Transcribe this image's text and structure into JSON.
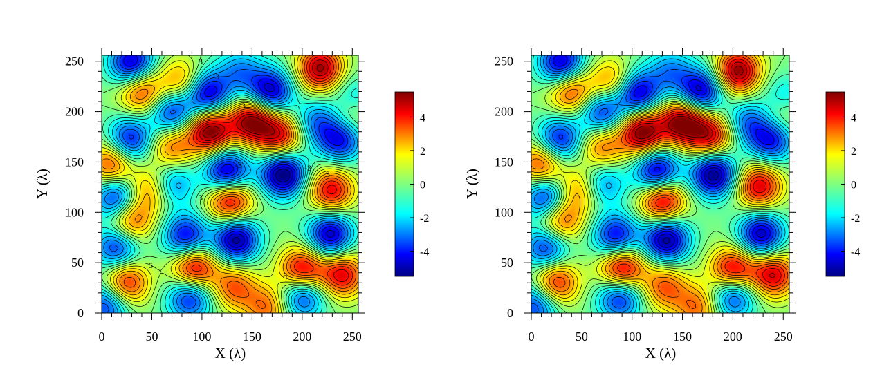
{
  "chart_data": [
    {
      "type": "heatmap",
      "panel": "left",
      "title": "",
      "xlabel": "X (λ)",
      "ylabel": "Y (λ)",
      "xlim": [
        0,
        256
      ],
      "ylim": [
        0,
        256
      ],
      "xticks": [
        0,
        50,
        100,
        150,
        200,
        250
      ],
      "yticks": [
        0,
        50,
        100,
        150,
        200,
        250
      ],
      "colorbar": {
        "range": [
          -5.5,
          5.5
        ],
        "ticks": [
          4,
          2,
          0,
          -2,
          -4
        ]
      },
      "contour_lines": true,
      "contour_labels": [
        "3",
        "3",
        "3",
        "3",
        "3",
        "-3",
        "-3",
        "-3",
        "1",
        "5"
      ],
      "features": [
        {
          "x": 218,
          "y": 243,
          "v": 5.2
        },
        {
          "x": 150,
          "y": 191,
          "v": 5.5
        },
        {
          "x": 108,
          "y": 181,
          "v": 5.8
        },
        {
          "x": 128,
          "y": 112,
          "v": 5.0
        },
        {
          "x": 92,
          "y": 44,
          "v": 5.0
        },
        {
          "x": 200,
          "y": 42,
          "v": 5.0
        },
        {
          "x": 240,
          "y": 38,
          "v": 4.4
        },
        {
          "x": 229,
          "y": 122,
          "v": 4.4
        },
        {
          "x": 178,
          "y": 176,
          "v": 4.2
        },
        {
          "x": 40,
          "y": 220,
          "v": 3.8
        },
        {
          "x": 10,
          "y": 148,
          "v": 3.8
        },
        {
          "x": 28,
          "y": 92,
          "v": 3.8
        },
        {
          "x": 24,
          "y": 30,
          "v": 4.2
        },
        {
          "x": 132,
          "y": 26,
          "v": 3.2
        },
        {
          "x": 70,
          "y": 165,
          "v": 3.0
        },
        {
          "x": 165,
          "y": 6,
          "v": 3.0
        },
        {
          "x": 248,
          "y": 200,
          "v": 3.2
        },
        {
          "x": 48,
          "y": 122,
          "v": 3.0
        },
        {
          "x": 80,
          "y": 229,
          "v": 3.0
        },
        {
          "x": 30,
          "y": 248,
          "v": -5.0
        },
        {
          "x": 105,
          "y": 218,
          "v": -5.0
        },
        {
          "x": 168,
          "y": 220,
          "v": -5.0
        },
        {
          "x": 70,
          "y": 200,
          "v": -4.0
        },
        {
          "x": 28,
          "y": 172,
          "v": -4.2
        },
        {
          "x": 125,
          "y": 140,
          "v": -5.4
        },
        {
          "x": 181,
          "y": 138,
          "v": -5.8
        },
        {
          "x": 15,
          "y": 114,
          "v": -4.4
        },
        {
          "x": 84,
          "y": 76,
          "v": -4.4
        },
        {
          "x": 134,
          "y": 73,
          "v": -5.4
        },
        {
          "x": 228,
          "y": 78,
          "v": -5.0
        },
        {
          "x": 15,
          "y": 65,
          "v": -4.0
        },
        {
          "x": 88,
          "y": 16,
          "v": -4.2
        },
        {
          "x": 200,
          "y": 18,
          "v": -4.2
        },
        {
          "x": 5,
          "y": 8,
          "v": -3.8
        },
        {
          "x": 238,
          "y": 172,
          "v": -4.2
        },
        {
          "x": 70,
          "y": 128,
          "v": -3.0
        },
        {
          "x": 250,
          "y": 210,
          "v": -3.2
        },
        {
          "x": 215,
          "y": 190,
          "v": -2.8
        },
        {
          "x": 138,
          "y": 240,
          "v": -2.5
        }
      ]
    },
    {
      "type": "heatmap",
      "panel": "right",
      "title": "",
      "xlabel": "X (λ)",
      "ylabel": "Y (λ)",
      "xlim": [
        0,
        256
      ],
      "ylim": [
        0,
        256
      ],
      "xticks": [
        0,
        50,
        100,
        150,
        200,
        250
      ],
      "yticks": [
        0,
        50,
        100,
        150,
        200,
        250
      ],
      "colorbar": {
        "range": [
          -5.5,
          5.5
        ],
        "ticks": [
          4,
          2,
          0,
          -2,
          -4
        ]
      },
      "contour_lines": true,
      "contour_labels": [],
      "features": [
        {
          "x": 205,
          "y": 240,
          "v": 5.4
        },
        {
          "x": 150,
          "y": 190,
          "v": 5.6
        },
        {
          "x": 110,
          "y": 180,
          "v": 5.8
        },
        {
          "x": 130,
          "y": 112,
          "v": 5.2
        },
        {
          "x": 90,
          "y": 44,
          "v": 5.2
        },
        {
          "x": 200,
          "y": 42,
          "v": 5.0
        },
        {
          "x": 240,
          "y": 38,
          "v": 4.6
        },
        {
          "x": 226,
          "y": 126,
          "v": 4.6
        },
        {
          "x": 178,
          "y": 176,
          "v": 4.4
        },
        {
          "x": 40,
          "y": 220,
          "v": 3.8
        },
        {
          "x": 10,
          "y": 148,
          "v": 3.8
        },
        {
          "x": 28,
          "y": 92,
          "v": 3.8
        },
        {
          "x": 24,
          "y": 30,
          "v": 4.2
        },
        {
          "x": 132,
          "y": 26,
          "v": 3.2
        },
        {
          "x": 70,
          "y": 165,
          "v": 3.0
        },
        {
          "x": 165,
          "y": 6,
          "v": 3.0
        },
        {
          "x": 248,
          "y": 200,
          "v": 3.2
        },
        {
          "x": 48,
          "y": 122,
          "v": 3.0
        },
        {
          "x": 80,
          "y": 229,
          "v": 3.0
        },
        {
          "x": 30,
          "y": 248,
          "v": -5.0
        },
        {
          "x": 105,
          "y": 218,
          "v": -5.0
        },
        {
          "x": 168,
          "y": 220,
          "v": -5.0
        },
        {
          "x": 70,
          "y": 200,
          "v": -4.0
        },
        {
          "x": 28,
          "y": 172,
          "v": -4.2
        },
        {
          "x": 125,
          "y": 140,
          "v": -5.2
        },
        {
          "x": 181,
          "y": 138,
          "v": -5.6
        },
        {
          "x": 15,
          "y": 114,
          "v": -4.4
        },
        {
          "x": 84,
          "y": 76,
          "v": -4.4
        },
        {
          "x": 134,
          "y": 73,
          "v": -5.4
        },
        {
          "x": 228,
          "y": 78,
          "v": -5.0
        },
        {
          "x": 15,
          "y": 65,
          "v": -4.0
        },
        {
          "x": 88,
          "y": 16,
          "v": -4.2
        },
        {
          "x": 200,
          "y": 18,
          "v": -4.2
        },
        {
          "x": 5,
          "y": 8,
          "v": -3.8
        },
        {
          "x": 238,
          "y": 172,
          "v": -4.2
        },
        {
          "x": 70,
          "y": 128,
          "v": -3.0
        },
        {
          "x": 250,
          "y": 210,
          "v": -3.2
        },
        {
          "x": 215,
          "y": 190,
          "v": -2.8
        },
        {
          "x": 138,
          "y": 240,
          "v": -2.5
        }
      ]
    }
  ]
}
